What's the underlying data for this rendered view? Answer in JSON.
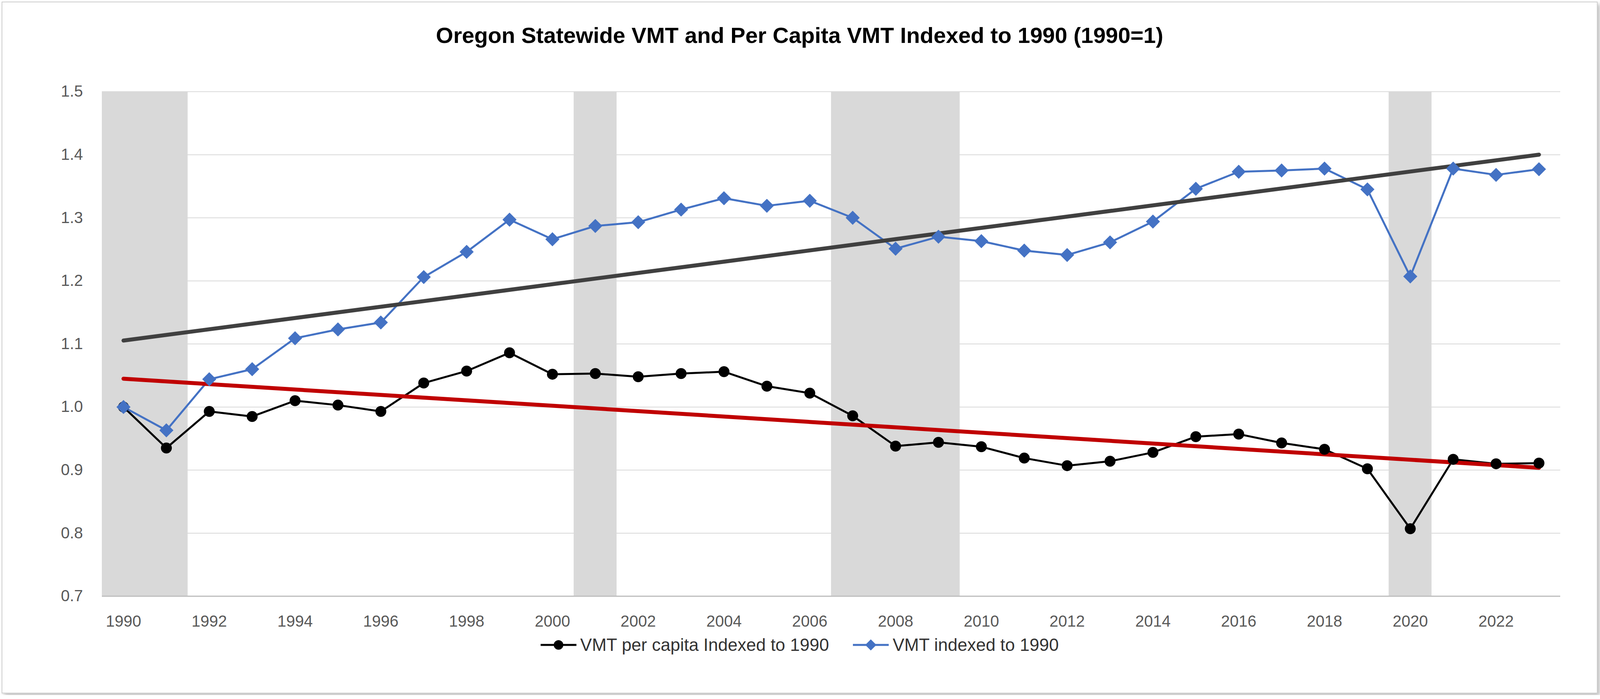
{
  "chart_data": {
    "type": "line",
    "title": "Oregon Statewide VMT and Per Capita VMT Indexed to 1990 (1990=1)",
    "x": [
      1990,
      1991,
      1992,
      1993,
      1994,
      1995,
      1996,
      1997,
      1998,
      1999,
      2000,
      2001,
      2002,
      2003,
      2004,
      2005,
      2006,
      2007,
      2008,
      2009,
      2010,
      2011,
      2012,
      2013,
      2014,
      2015,
      2016,
      2017,
      2018,
      2019,
      2020,
      2021,
      2022,
      2023
    ],
    "series": [
      {
        "name": "VMT per capita Indexed to 1990",
        "color": "#000000",
        "marker": "circle",
        "values": [
          1.0,
          0.935,
          0.993,
          0.985,
          1.01,
          1.003,
          0.993,
          1.038,
          1.057,
          1.086,
          1.052,
          1.053,
          1.048,
          1.053,
          1.056,
          1.033,
          1.022,
          0.986,
          0.938,
          0.944,
          0.937,
          0.919,
          0.907,
          0.914,
          0.928,
          0.953,
          0.957,
          0.943,
          0.933,
          0.902,
          0.807,
          0.917,
          0.91,
          0.911
        ]
      },
      {
        "name": "VMT indexed to 1990",
        "color": "#4472c4",
        "marker": "diamond",
        "values": [
          1.0,
          0.963,
          1.044,
          1.06,
          1.109,
          1.123,
          1.134,
          1.206,
          1.246,
          1.297,
          1.266,
          1.287,
          1.293,
          1.313,
          1.331,
          1.319,
          1.327,
          1.3,
          1.251,
          1.27,
          1.263,
          1.248,
          1.241,
          1.261,
          1.294,
          1.346,
          1.373,
          1.375,
          1.378,
          1.345,
          1.207,
          1.378,
          1.368,
          1.377
        ]
      }
    ],
    "shaded_periods": [
      [
        1989.5,
        1991.5
      ],
      [
        2000.5,
        2001.5
      ],
      [
        2006.5,
        2009.5
      ],
      [
        2019.5,
        2020.5
      ]
    ],
    "xlim": [
      1989.5,
      2023.5
    ],
    "xticks": [
      1990,
      1992,
      1994,
      1996,
      1998,
      2000,
      2002,
      2004,
      2006,
      2008,
      2010,
      2012,
      2014,
      2016,
      2018,
      2020,
      2022
    ],
    "ylim": [
      0.7,
      1.5
    ],
    "yticks": [
      0.7,
      0.8,
      0.9,
      {
        "value": 1,
        "label": "1.0"
      },
      1.1,
      1.2,
      1.3,
      1.4,
      1.5
    ],
    "grid": true,
    "legend": "bottom"
  }
}
